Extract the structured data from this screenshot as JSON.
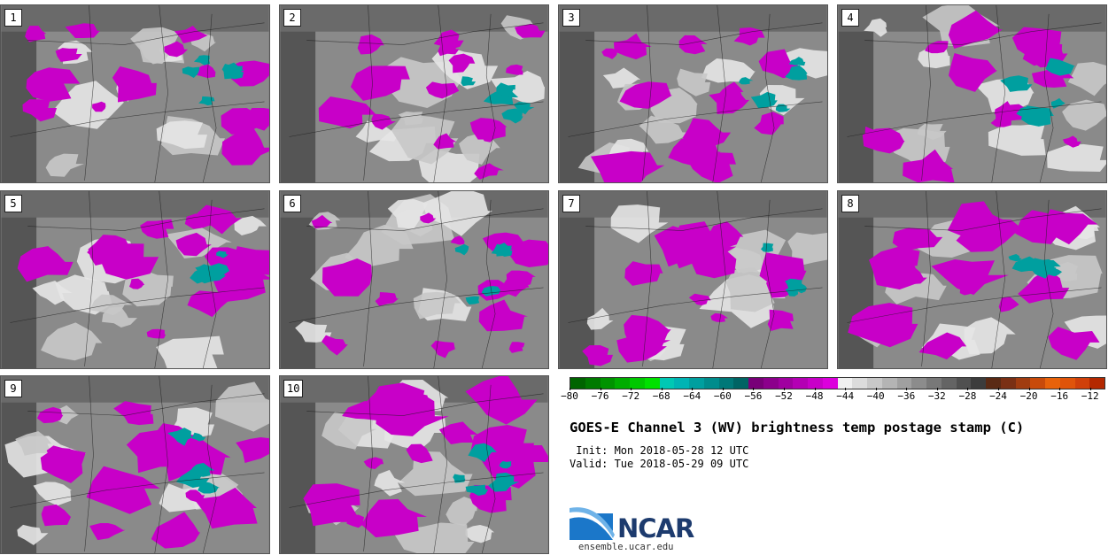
{
  "panels": [
    {
      "label": "1"
    },
    {
      "label": "2"
    },
    {
      "label": "3"
    },
    {
      "label": "4"
    },
    {
      "label": "5"
    },
    {
      "label": "6"
    },
    {
      "label": "7"
    },
    {
      "label": "8"
    },
    {
      "label": "9"
    },
    {
      "label": "10"
    }
  ],
  "colorbar": {
    "colors": [
      "#006400",
      "#007a00",
      "#009300",
      "#00ad00",
      "#00c800",
      "#00e100",
      "#00c8b4",
      "#00b4b4",
      "#009f9f",
      "#008c8c",
      "#007878",
      "#006464",
      "#780078",
      "#8c008c",
      "#a000a0",
      "#b400b4",
      "#c800c8",
      "#dc00dc",
      "#f0f0f0",
      "#dcdcdc",
      "#c8c8c8",
      "#b4b4b4",
      "#a0a0a0",
      "#8c8c8c",
      "#787878",
      "#646464",
      "#505050",
      "#3c3c3c",
      "#5a2a14",
      "#7a3014",
      "#a03c10",
      "#c84a0a",
      "#e8620a",
      "#e0540a",
      "#d0400a",
      "#b42800"
    ],
    "tick_labels": [
      "−80",
      "−76",
      "−72",
      "−68",
      "−64",
      "−60",
      "−56",
      "−52",
      "−48",
      "−44",
      "−40",
      "−36",
      "−32",
      "−28",
      "−24",
      "−20",
      "−16",
      "−12"
    ],
    "min": -80,
    "max": -10
  },
  "title": "GOES-E Channel 3 (WV) brightness temp postage stamp (C)",
  "init_line": " Init: Mon 2018-05-28 12 UTC",
  "valid_line": "Valid: Tue 2018-05-29 09 UTC",
  "logo": {
    "text": "NCAR",
    "url": "ensemble.ucar.edu"
  },
  "colors": {
    "magenta": "#c800c8",
    "teal": "#009f9f",
    "gray": "#7f7f7f"
  }
}
